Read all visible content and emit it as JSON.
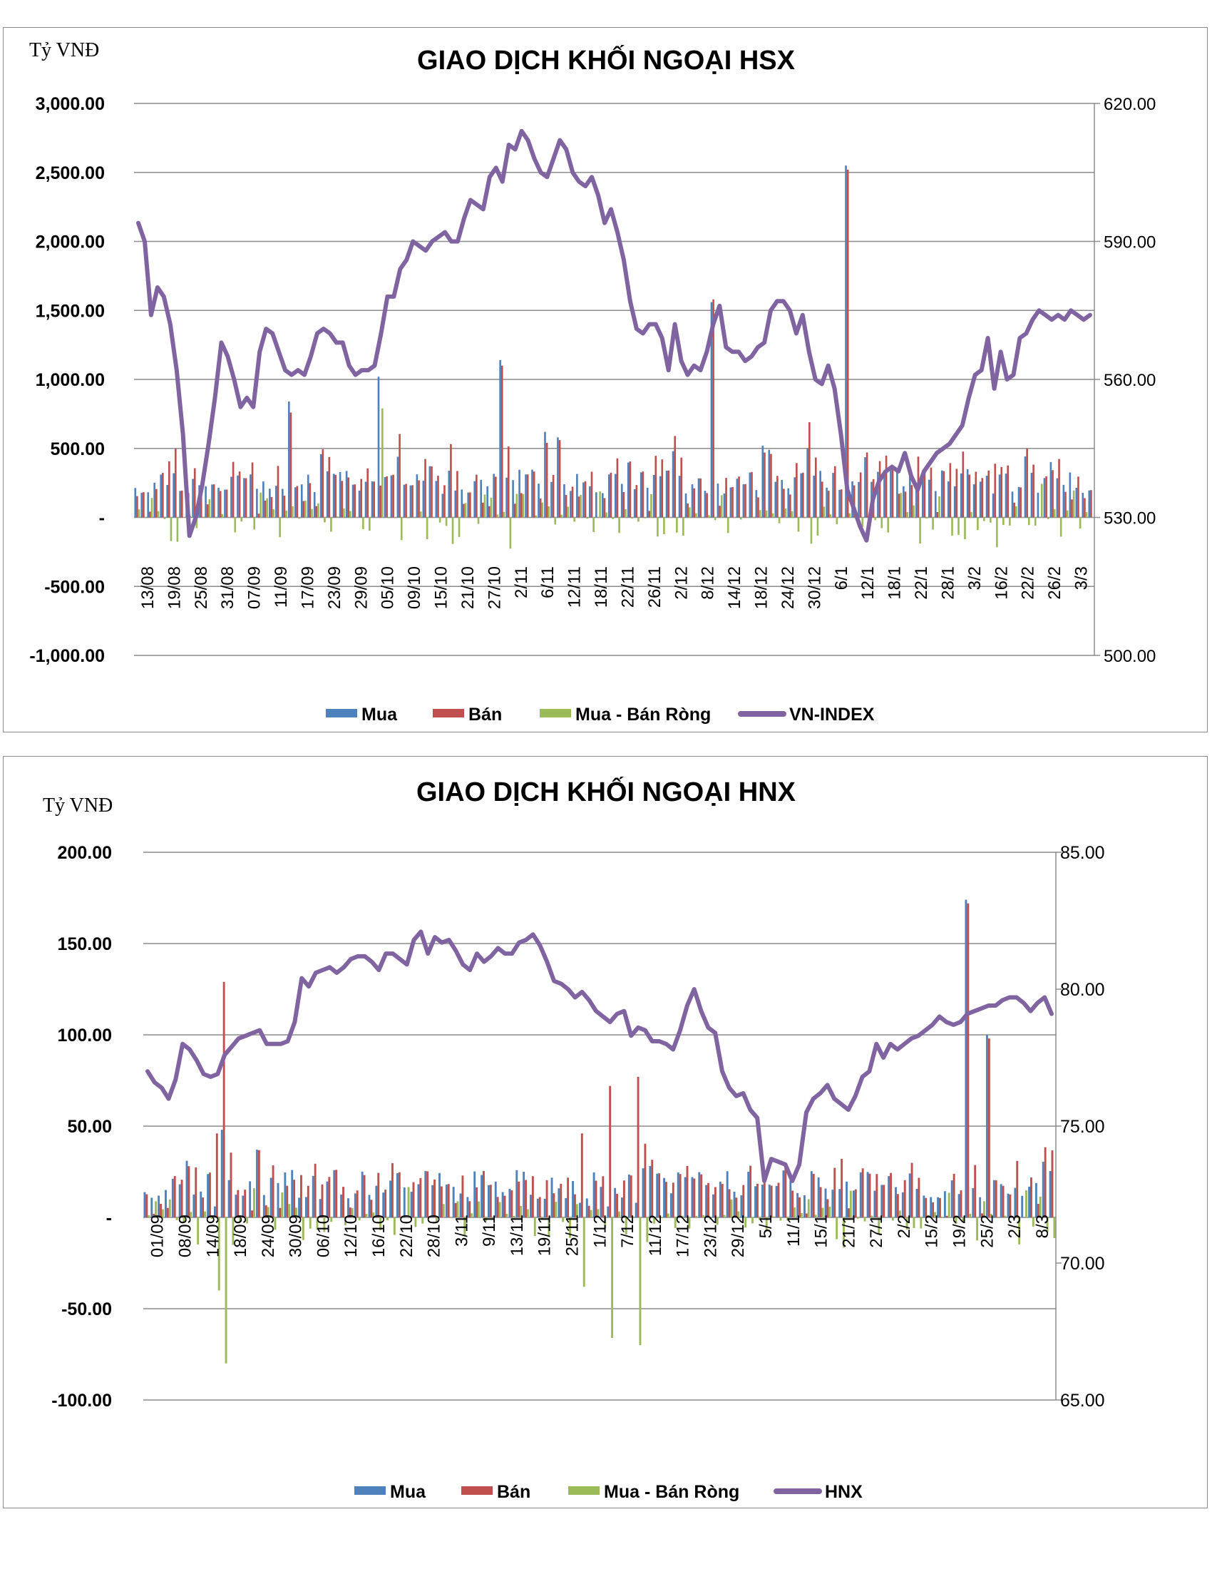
{
  "colors": {
    "buy": "#4f81bd",
    "sell": "#c0504d",
    "net": "#9bbb59",
    "index_line": "#8064a2",
    "grid": "#8c8c8c"
  },
  "chart_data": [
    {
      "type": "bar+line",
      "title": "GIAO DỊCH KHỐI NGOẠI HSX",
      "unit_label": "Tỷ VNĐ",
      "left_axis": {
        "min": -1000,
        "max": 3000,
        "ticks": [
          3000,
          2500,
          2000,
          1500,
          1000,
          500,
          0,
          -500,
          -1000
        ],
        "tick_labels": [
          "3,000.00",
          "2,500.00",
          "2,000.00",
          "1,500.00",
          "1,000.00",
          "500.00",
          "-",
          "-500.00",
          "-1,000.00"
        ]
      },
      "right_axis": {
        "min": 500,
        "max": 620,
        "ticks": [
          620,
          590,
          560,
          530,
          500
        ],
        "tick_labels": [
          "620.00",
          "590.00",
          "560.00",
          "530.00",
          "500.00"
        ]
      },
      "x_tick_labels": [
        "13/08",
        "19/08",
        "25/08",
        "31/08",
        "07/09",
        "11/09",
        "17/09",
        "23/09",
        "29/09",
        "05/10",
        "09/10",
        "15/10",
        "21/10",
        "27/10",
        "2/11",
        "6/11",
        "12/11",
        "18/11",
        "22/11",
        "26/11",
        "2/12",
        "8/12",
        "14/12",
        "18/12",
        "24/12",
        "30/12",
        "6/1",
        "12/1",
        "18/1",
        "22/1",
        "28/1",
        "3/2",
        "16/2",
        "22/2",
        "26/2",
        "3/3"
      ],
      "legend": [
        "Mua",
        "Bán",
        "Mua - Bán Ròng",
        "VN-INDEX"
      ],
      "n_sessions": 150,
      "grid": "horizontal",
      "legend_position": "bottom",
      "spikes": [
        {
          "session": 111,
          "buy": 2550,
          "sell": 2520,
          "net": 30
        },
        {
          "session": 90,
          "buy": 1560,
          "sell": 1580,
          "net": -20
        },
        {
          "session": 57,
          "buy": 1140,
          "sell": 1100,
          "net": 40
        },
        {
          "session": 38,
          "buy": 1020,
          "sell": 230,
          "net": 790
        },
        {
          "session": 24,
          "buy": 840,
          "sell": 760,
          "net": 80
        },
        {
          "session": 64,
          "buy": 620,
          "sell": 540,
          "net": 80
        },
        {
          "session": 66,
          "buy": 580,
          "sell": 560,
          "net": 20
        },
        {
          "session": 84,
          "buy": 480,
          "sell": 590,
          "net": -110
        },
        {
          "session": 105,
          "buy": 500,
          "sell": 690,
          "net": -190
        },
        {
          "session": 98,
          "buy": 520,
          "sell": 470,
          "net": 50
        },
        {
          "session": 99,
          "buy": 490,
          "sell": 460,
          "net": 30
        }
      ],
      "index_series": {
        "name": "VN-INDEX",
        "values": [
          594,
          590,
          574,
          580,
          578,
          572,
          562,
          548,
          526,
          530,
          537,
          546,
          556,
          568,
          565,
          560,
          554,
          556,
          554,
          566,
          571,
          570,
          566,
          562,
          561,
          562,
          561,
          565,
          570,
          571,
          570,
          568,
          568,
          563,
          561,
          562,
          562,
          563,
          570,
          578,
          578,
          584,
          586,
          590,
          589,
          588,
          590,
          591,
          592,
          590,
          590,
          595,
          599,
          598,
          597,
          604,
          606,
          603,
          611,
          610,
          614,
          612,
          608,
          605,
          604,
          608,
          612,
          610,
          605,
          603,
          602,
          604,
          600,
          594,
          597,
          592,
          586,
          577,
          571,
          570,
          572,
          572,
          569,
          562,
          572,
          564,
          561,
          563,
          562,
          566,
          572,
          576,
          567,
          566,
          566,
          564,
          565,
          567,
          568,
          575,
          577,
          577,
          575,
          570,
          574,
          566,
          560,
          559,
          563,
          558,
          548,
          536,
          532,
          528,
          525,
          534,
          538,
          540,
          541,
          540,
          544,
          539,
          536,
          540,
          542,
          544,
          545,
          546,
          548,
          550,
          556,
          561,
          562,
          569,
          558,
          566,
          560,
          561,
          569,
          570,
          573,
          575,
          574,
          573,
          574,
          573,
          575,
          574,
          573,
          574
        ]
      }
    },
    {
      "type": "bar+line",
      "title": "GIAO DỊCH KHỐI NGOẠI HNX",
      "unit_label": "Tỷ VNĐ",
      "left_axis": {
        "min": -100,
        "max": 200,
        "ticks": [
          200,
          150,
          100,
          50,
          0,
          -50,
          -100
        ],
        "tick_labels": [
          "200.00",
          "150.00",
          "100.00",
          "50.00",
          "-",
          "-50.00",
          "-100.00"
        ]
      },
      "right_axis": {
        "min": 65,
        "max": 85,
        "ticks": [
          85,
          80,
          75,
          70,
          65
        ],
        "tick_labels": [
          "85.00",
          "80.00",
          "75.00",
          "70.00",
          "65.00"
        ]
      },
      "x_tick_labels": [
        "01/09",
        "08/09",
        "14/09",
        "18/09",
        "24/09",
        "30/09",
        "06/10",
        "12/10",
        "16/10",
        "22/10",
        "28/10",
        "3/11",
        "9/11",
        "13/11",
        "19/11",
        "25/11",
        "1/12",
        "7/12",
        "11/12",
        "17/12",
        "23/12",
        "29/12",
        "5/1",
        "11/1",
        "15/1",
        "21/1",
        "27/1",
        "2/2",
        "15/2",
        "19/2",
        "25/2",
        "2/3",
        "8/3"
      ],
      "legend": [
        "Mua",
        "Bán",
        "Mua - Bán Ròng",
        "HNX"
      ],
      "n_sessions": 130,
      "grid": "horizontal",
      "legend_position": "bottom",
      "spikes": [
        {
          "session": 117,
          "buy": 174,
          "sell": 172,
          "net": 2
        },
        {
          "session": 11,
          "buy": 48,
          "sell": 129,
          "net": -80
        },
        {
          "session": 70,
          "buy": 8,
          "sell": 77,
          "net": -70
        },
        {
          "session": 66,
          "buy": 6,
          "sell": 72,
          "net": -66
        },
        {
          "session": 62,
          "buy": 8,
          "sell": 46,
          "net": -38
        },
        {
          "session": 10,
          "buy": 6,
          "sell": 46,
          "net": -40
        },
        {
          "session": 120,
          "buy": 100,
          "sell": 98,
          "net": 2
        }
      ],
      "index_series": {
        "name": "HNX",
        "values": [
          77.0,
          76.6,
          76.4,
          76.0,
          76.7,
          78.0,
          77.8,
          77.4,
          76.9,
          76.8,
          76.9,
          77.6,
          77.9,
          78.2,
          78.3,
          78.4,
          78.5,
          78.0,
          78.0,
          78.0,
          78.1,
          78.8,
          80.4,
          80.1,
          80.6,
          80.7,
          80.8,
          80.6,
          80.8,
          81.1,
          81.2,
          81.2,
          81.0,
          80.7,
          81.3,
          81.3,
          81.1,
          80.9,
          81.8,
          82.1,
          81.3,
          81.9,
          81.7,
          81.8,
          81.4,
          80.9,
          80.7,
          81.3,
          81.0,
          81.2,
          81.5,
          81.3,
          81.3,
          81.7,
          81.8,
          82.0,
          81.6,
          81.0,
          80.3,
          80.2,
          80.0,
          79.7,
          79.9,
          79.6,
          79.2,
          79.0,
          78.8,
          79.1,
          79.2,
          78.3,
          78.6,
          78.5,
          78.1,
          78.1,
          78.0,
          77.8,
          78.5,
          79.4,
          80.0,
          79.2,
          78.6,
          78.4,
          77.0,
          76.4,
          76.1,
          76.2,
          75.6,
          75.3,
          73.0,
          73.8,
          73.7,
          73.6,
          73.0,
          73.6,
          75.5,
          76.0,
          76.2,
          76.5,
          76.0,
          75.8,
          75.6,
          76.1,
          76.8,
          77.0,
          78.0,
          77.5,
          78.0,
          77.8,
          78.0,
          78.2,
          78.3,
          78.5,
          78.7,
          79.0,
          78.8,
          78.7,
          78.8,
          79.1,
          79.2,
          79.3,
          79.4,
          79.4,
          79.6,
          79.7,
          79.7,
          79.5,
          79.2,
          79.5,
          79.7,
          79.1
        ]
      }
    }
  ]
}
